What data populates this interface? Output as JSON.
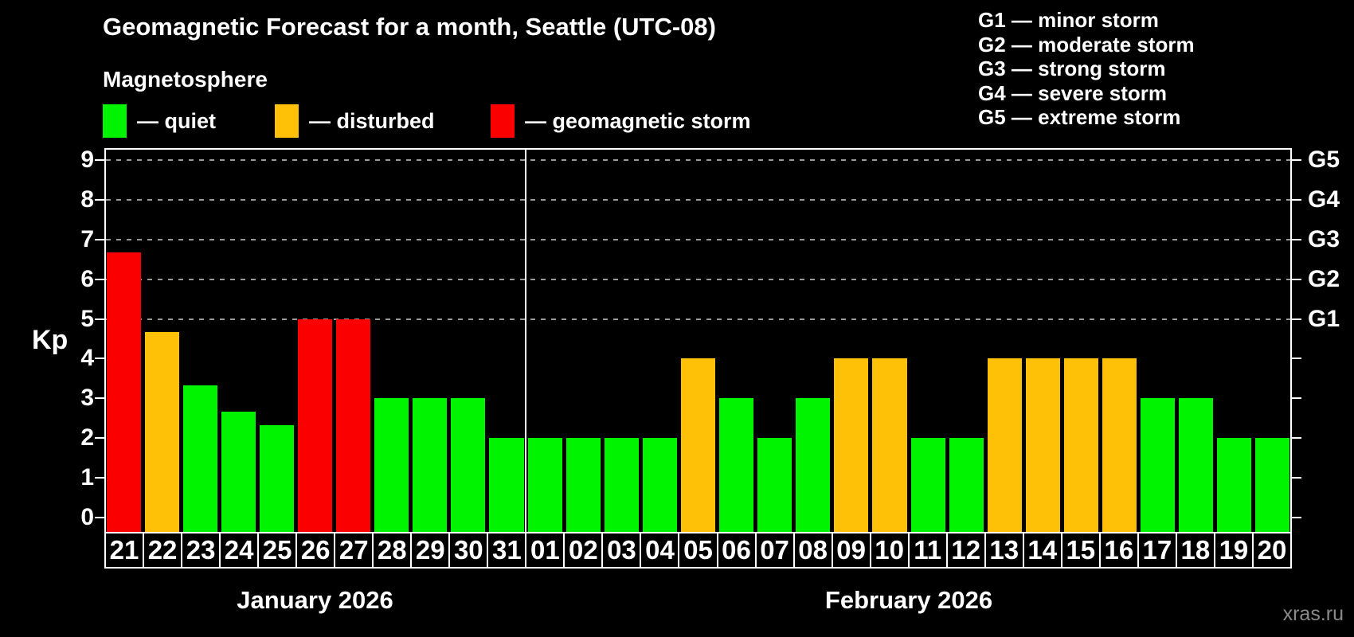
{
  "title": "Geomagnetic Forecast for a month, Seattle (UTC-08)",
  "subtitle": "Magnetosphere",
  "watermark": "xras.ru",
  "colors": {
    "background": "#000000",
    "axis": "#ffffff",
    "grid": "#999999",
    "quiet": "#00f400",
    "disturbed": "#ffc107",
    "storm": "#fa0000"
  },
  "legend": [
    {
      "status": "quiet",
      "label": "— quiet"
    },
    {
      "status": "disturbed",
      "label": "— disturbed"
    },
    {
      "status": "storm",
      "label": "— geomagnetic storm"
    }
  ],
  "g_legend": [
    {
      "code": "G1",
      "desc": "minor storm"
    },
    {
      "code": "G2",
      "desc": "moderate storm"
    },
    {
      "code": "G3",
      "desc": "strong storm"
    },
    {
      "code": "G4",
      "desc": "severe storm"
    },
    {
      "code": "G5",
      "desc": "extreme storm"
    }
  ],
  "chart_data": {
    "type": "bar",
    "ylabel": "Kp",
    "ylim": [
      -0.36,
      9.3
    ],
    "y_ticks": [
      0,
      1,
      2,
      3,
      4,
      5,
      6,
      7,
      8,
      9
    ],
    "gridlines_kp": [
      5,
      6,
      7,
      8,
      9
    ],
    "grid_style": "dashed",
    "legend_position": "top",
    "right_axis_labels": [
      {
        "kp": 5,
        "label": "G1"
      },
      {
        "kp": 6,
        "label": "G2"
      },
      {
        "kp": 7,
        "label": "G3"
      },
      {
        "kp": 8,
        "label": "G4"
      },
      {
        "kp": 9,
        "label": "G5"
      }
    ],
    "months": [
      {
        "label": "January 2026",
        "days": [
          {
            "day": "21",
            "kp": 6.67,
            "status": "storm"
          },
          {
            "day": "22",
            "kp": 4.67,
            "status": "disturbed"
          },
          {
            "day": "23",
            "kp": 3.33,
            "status": "quiet"
          },
          {
            "day": "24",
            "kp": 2.67,
            "status": "quiet"
          },
          {
            "day": "25",
            "kp": 2.33,
            "status": "quiet"
          },
          {
            "day": "26",
            "kp": 5,
            "status": "storm"
          },
          {
            "day": "27",
            "kp": 5,
            "status": "storm"
          },
          {
            "day": "28",
            "kp": 3,
            "status": "quiet"
          },
          {
            "day": "29",
            "kp": 3,
            "status": "quiet"
          },
          {
            "day": "30",
            "kp": 3,
            "status": "quiet"
          },
          {
            "day": "31",
            "kp": 2,
            "status": "quiet"
          }
        ]
      },
      {
        "label": "February 2026",
        "days": [
          {
            "day": "01",
            "kp": 2,
            "status": "quiet"
          },
          {
            "day": "02",
            "kp": 2,
            "status": "quiet"
          },
          {
            "day": "03",
            "kp": 2,
            "status": "quiet"
          },
          {
            "day": "04",
            "kp": 2,
            "status": "quiet"
          },
          {
            "day": "05",
            "kp": 4,
            "status": "disturbed"
          },
          {
            "day": "06",
            "kp": 3,
            "status": "quiet"
          },
          {
            "day": "07",
            "kp": 2,
            "status": "quiet"
          },
          {
            "day": "08",
            "kp": 3,
            "status": "quiet"
          },
          {
            "day": "09",
            "kp": 4,
            "status": "disturbed"
          },
          {
            "day": "10",
            "kp": 4,
            "status": "disturbed"
          },
          {
            "day": "11",
            "kp": 2,
            "status": "quiet"
          },
          {
            "day": "12",
            "kp": 2,
            "status": "quiet"
          },
          {
            "day": "13",
            "kp": 4,
            "status": "disturbed"
          },
          {
            "day": "14",
            "kp": 4,
            "status": "disturbed"
          },
          {
            "day": "15",
            "kp": 4,
            "status": "disturbed"
          },
          {
            "day": "16",
            "kp": 4,
            "status": "disturbed"
          },
          {
            "day": "17",
            "kp": 3,
            "status": "quiet"
          },
          {
            "day": "18",
            "kp": 3,
            "status": "quiet"
          },
          {
            "day": "19",
            "kp": 2,
            "status": "quiet"
          },
          {
            "day": "20",
            "kp": 2,
            "status": "quiet"
          }
        ]
      }
    ]
  }
}
